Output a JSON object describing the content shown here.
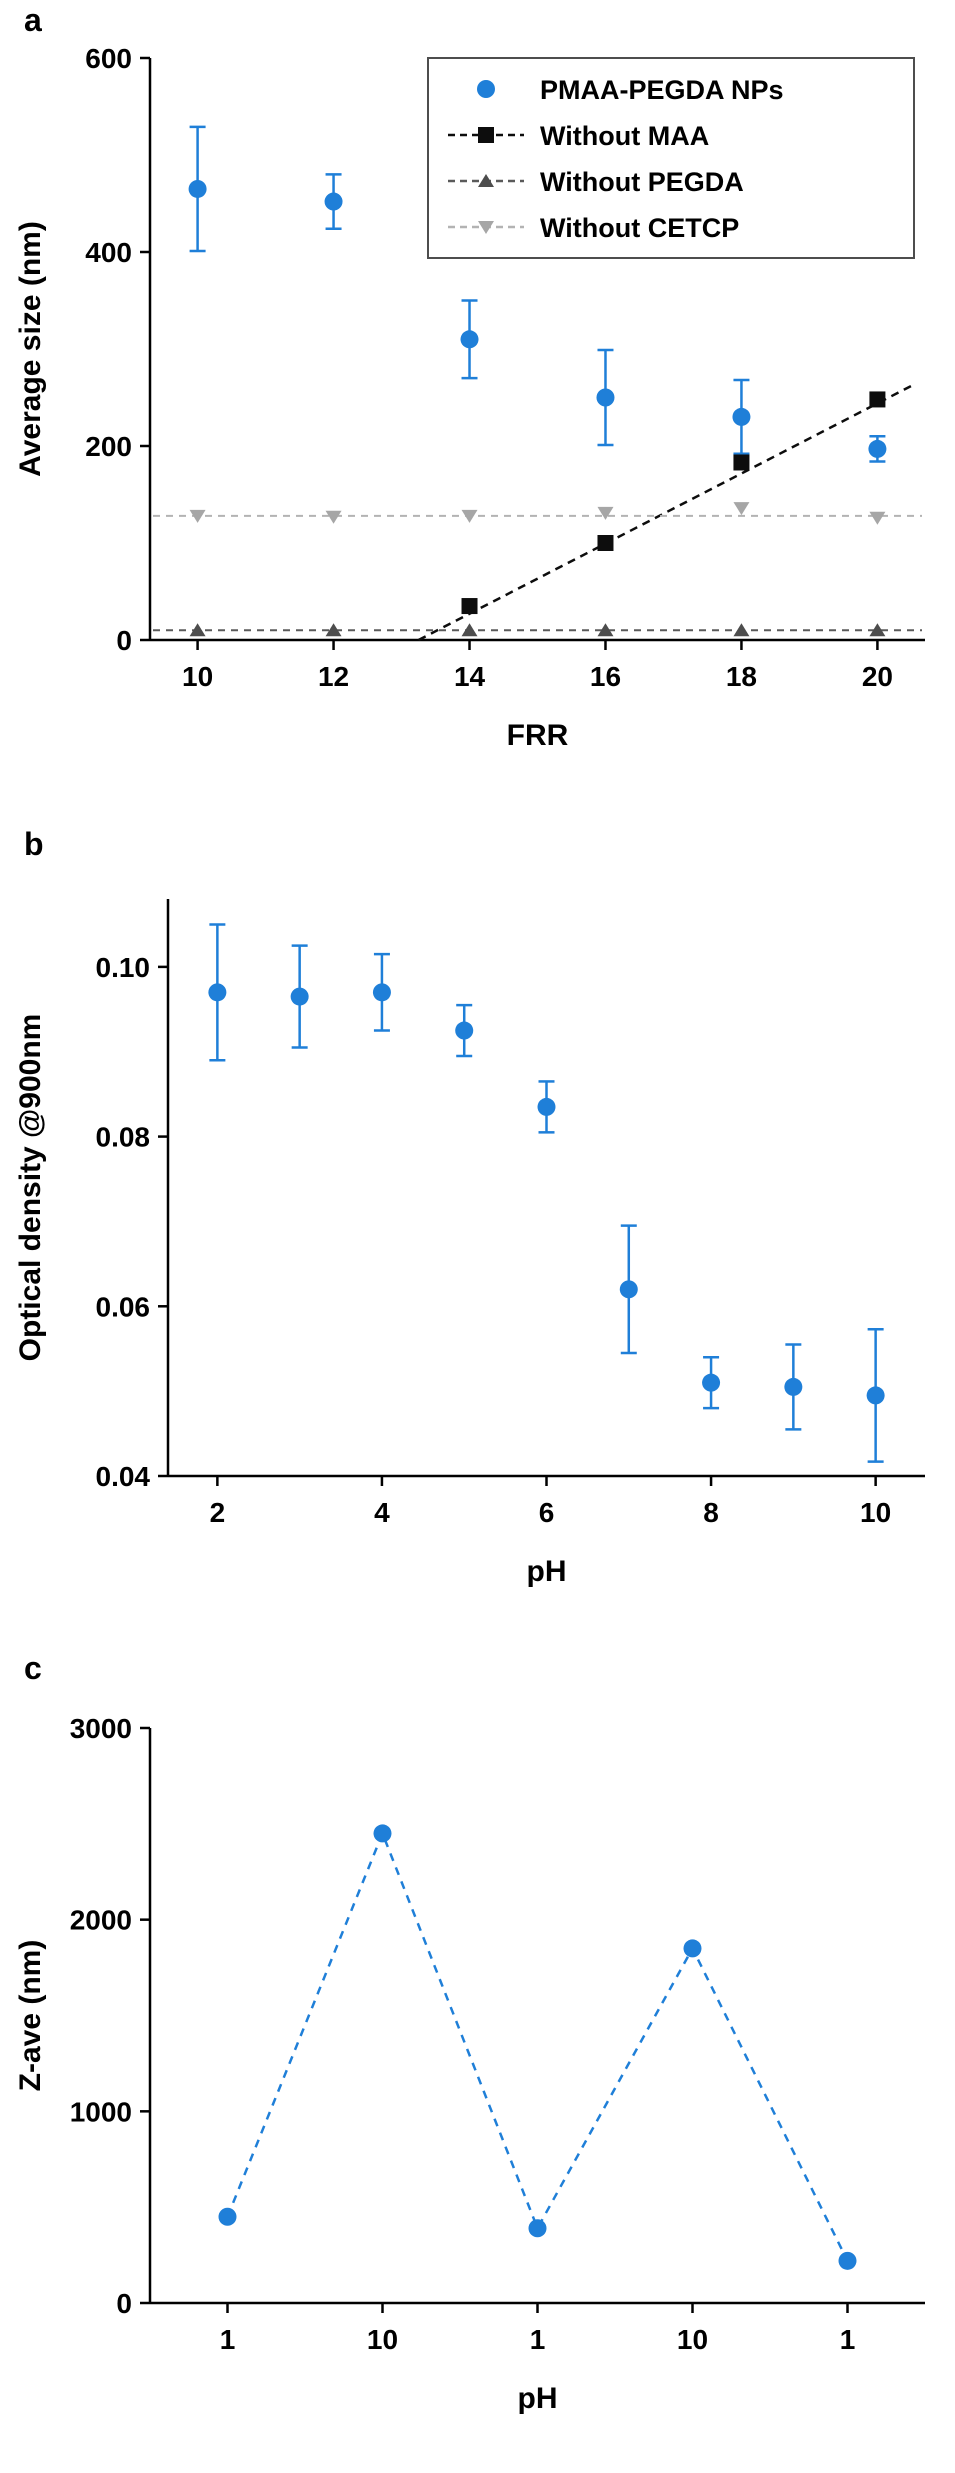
{
  "figure": {
    "background": "#ffffff",
    "accent_blue": "#1f7fd8"
  },
  "panels": [
    {
      "label": "a"
    },
    {
      "label": "b"
    },
    {
      "label": "c"
    }
  ],
  "chart_data": [
    {
      "id": "a",
      "type": "scatter",
      "xlabel": "FRR",
      "ylabel": "Average size (nm)",
      "xlim": [
        9.3,
        20.7
      ],
      "ylim": [
        0,
        600
      ],
      "xticks": [
        10,
        12,
        14,
        16,
        18,
        20
      ],
      "xtick_labels": [
        "10",
        "12",
        "14",
        "16",
        "18",
        "20"
      ],
      "yticks": [
        0,
        200,
        400,
        600
      ],
      "ytick_labels": [
        "0",
        "200",
        "400",
        "600"
      ],
      "grid": false,
      "legend_position": "top-right",
      "series": [
        {
          "name": "PMAA-PEGDA NPs",
          "marker": "circle",
          "color": "#1f7fd8",
          "linestyle": "none",
          "x": [
            10,
            12,
            14,
            16,
            18,
            20
          ],
          "y": [
            465,
            452,
            310,
            250,
            230,
            197
          ],
          "yerr": [
            64,
            28,
            40,
            49,
            38,
            13
          ]
        },
        {
          "name": "Without MAA",
          "marker": "square",
          "color": "#0d0d0d",
          "linestyle": "dashed",
          "line_color": "#0d0d0d",
          "x": [
            14,
            16,
            18,
            20
          ],
          "y": [
            35,
            100,
            183,
            248
          ],
          "trend": {
            "x": [
              13.25,
              20.5
            ],
            "y": [
              0,
              262
            ]
          }
        },
        {
          "name": "Without PEGDA",
          "marker": "triangle-up",
          "color": "#4d4d4d",
          "linestyle": "dashed",
          "line_color": "#5a5a5a",
          "x": [
            10,
            12,
            14,
            16,
            18,
            20
          ],
          "y": [
            10,
            10,
            10,
            10,
            10,
            10
          ],
          "hline": 10
        },
        {
          "name": "Without CETCP",
          "marker": "triangle-down",
          "color": "#a6a6a6",
          "linestyle": "dashed",
          "line_color": "#b3b3b3",
          "x": [
            10,
            12,
            14,
            16,
            18,
            20
          ],
          "y": [
            128,
            127,
            128,
            131,
            136,
            126
          ],
          "hline": 128
        }
      ]
    },
    {
      "id": "b",
      "type": "scatter",
      "xlabel": "pH",
      "ylabel": "Optical density @900nm",
      "xlim": [
        1.4,
        10.6
      ],
      "ylim": [
        0.04,
        0.108
      ],
      "xticks": [
        2,
        4,
        6,
        8,
        10
      ],
      "xtick_labels": [
        "2",
        "4",
        "6",
        "8",
        "10"
      ],
      "yticks": [
        0.04,
        0.06,
        0.08,
        0.1
      ],
      "ytick_labels": [
        "0.04",
        "0.06",
        "0.08",
        "0.10"
      ],
      "grid": false,
      "series": [
        {
          "name": "Optical density",
          "marker": "circle",
          "color": "#1f7fd8",
          "linestyle": "none",
          "x": [
            2,
            3,
            4,
            5,
            6,
            7,
            8,
            9,
            10
          ],
          "y": [
            0.097,
            0.0965,
            0.097,
            0.0925,
            0.0835,
            0.062,
            0.051,
            0.0505,
            0.0495
          ],
          "yerr": [
            0.008,
            0.006,
            0.0045,
            0.003,
            0.003,
            0.0075,
            0.003,
            0.005,
            0.0078
          ]
        }
      ]
    },
    {
      "id": "c",
      "type": "line",
      "xlabel": "pH",
      "ylabel": "Z-ave (nm)",
      "categories": [
        "1",
        "10",
        "1",
        "10",
        "1"
      ],
      "ylim": [
        0,
        3000
      ],
      "yticks": [
        0,
        1000,
        2000,
        3000
      ],
      "ytick_labels": [
        "0",
        "1000",
        "2000",
        "3000"
      ],
      "grid": false,
      "series": [
        {
          "name": "Z-ave",
          "marker": "circle",
          "color": "#1f7fd8",
          "linestyle": "dashed",
          "line_color": "#1f7fd8",
          "values": [
            450,
            2450,
            390,
            1850,
            220
          ]
        }
      ]
    }
  ]
}
